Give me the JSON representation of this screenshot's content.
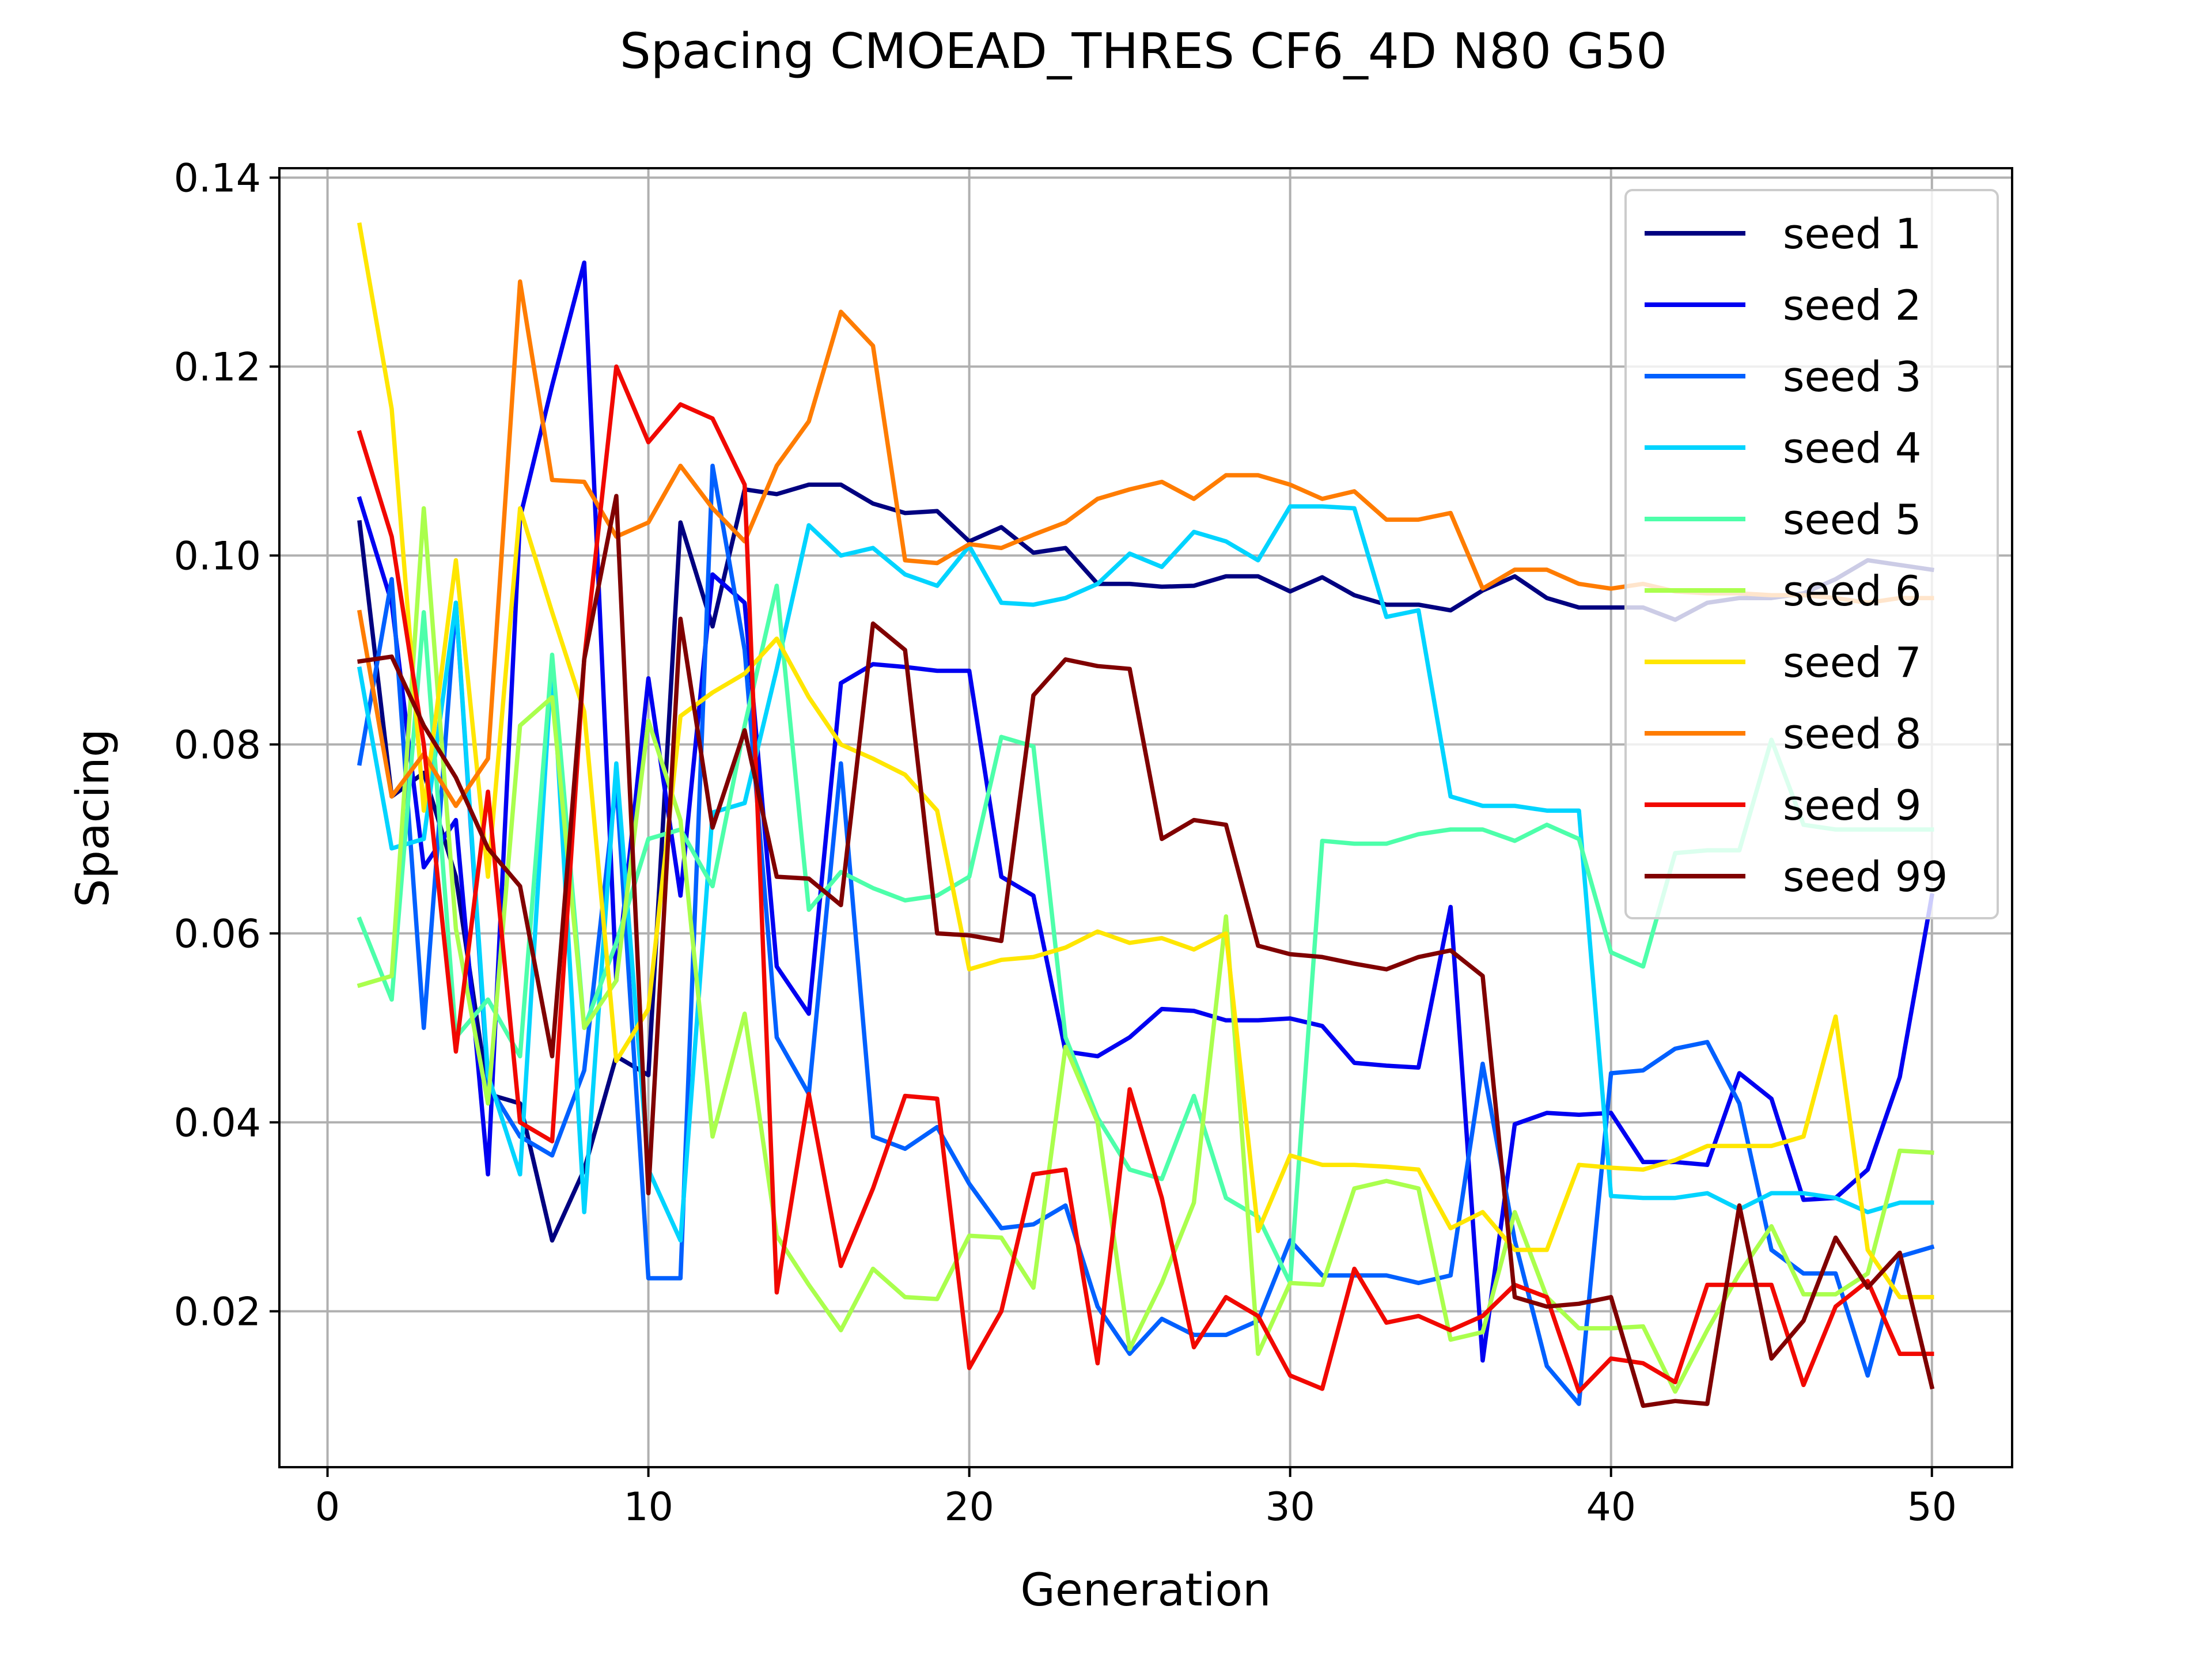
{
  "chart_data": {
    "type": "line",
    "title": "Spacing CMOEAD_THRES CF6_4D N80 G50",
    "xlabel": "Generation",
    "ylabel": "Spacing",
    "xlim": [
      -1.5,
      52.5
    ],
    "ylim": [
      0.0035,
      0.141
    ],
    "xticks": [
      0,
      10,
      20,
      30,
      40,
      50
    ],
    "yticks": [
      0.02,
      0.04,
      0.06,
      0.08,
      0.1,
      0.12,
      0.14
    ],
    "ytick_labels": [
      "0.02",
      "0.04",
      "0.06",
      "0.08",
      "0.10",
      "0.12",
      "0.14"
    ],
    "grid": true,
    "legend_position": "top-right",
    "x": [
      1,
      2,
      3,
      4,
      5,
      6,
      7,
      8,
      9,
      10,
      11,
      12,
      13,
      14,
      15,
      16,
      17,
      18,
      19,
      20,
      21,
      22,
      23,
      24,
      25,
      26,
      27,
      28,
      29,
      30,
      31,
      32,
      33,
      34,
      35,
      36,
      37,
      38,
      39,
      40,
      41,
      42,
      43,
      44,
      45,
      46,
      47,
      48,
      49,
      50
    ],
    "series": [
      {
        "name": "seed 1",
        "color": "#000080",
        "values": [
          0.1035,
          0.0745,
          0.077,
          0.066,
          0.043,
          0.042,
          0.0275,
          0.035,
          0.047,
          0.045,
          0.1035,
          0.0925,
          0.107,
          0.1065,
          0.1075,
          0.1075,
          0.1055,
          0.1045,
          0.1047,
          0.1015,
          0.103,
          0.1003,
          0.1008,
          0.097,
          0.097,
          0.0967,
          0.0968,
          0.0978,
          0.0978,
          0.0962,
          0.0977,
          0.0958,
          0.0948,
          0.0948,
          0.0942,
          0.0963,
          0.0978,
          0.0955,
          0.0945,
          0.0945,
          0.0945,
          0.0932,
          0.095,
          0.0955,
          0.0955,
          0.096,
          0.0975,
          0.0995,
          0.099,
          0.0985
        ]
      },
      {
        "name": "seed 2",
        "color": "#0000f1",
        "values": [
          0.106,
          0.095,
          0.067,
          0.072,
          0.0345,
          0.104,
          0.118,
          0.131,
          0.055,
          0.087,
          0.064,
          0.098,
          0.095,
          0.0565,
          0.0515,
          0.0865,
          0.0885,
          0.0882,
          0.0878,
          0.0878,
          0.066,
          0.064,
          0.0475,
          0.047,
          0.049,
          0.052,
          0.0518,
          0.0508,
          0.0508,
          0.051,
          0.0502,
          0.0463,
          0.046,
          0.0458,
          0.0628,
          0.0148,
          0.0398,
          0.041,
          0.0408,
          0.041,
          0.0358,
          0.0358,
          0.0355,
          0.0452,
          0.0425,
          0.0318,
          0.032,
          0.035,
          0.0448,
          0.064
        ]
      },
      {
        "name": "seed 3",
        "color": "#0060ff",
        "values": [
          0.078,
          0.0975,
          0.05,
          0.095,
          0.044,
          0.0385,
          0.0365,
          0.0455,
          0.076,
          0.0235,
          0.0235,
          0.1095,
          0.09,
          0.049,
          0.043,
          0.078,
          0.0385,
          0.0372,
          0.0395,
          0.0335,
          0.0288,
          0.0292,
          0.0312,
          0.0205,
          0.0155,
          0.0192,
          0.0175,
          0.0175,
          0.019,
          0.0275,
          0.0238,
          0.0238,
          0.0238,
          0.023,
          0.0238,
          0.0462,
          0.0275,
          0.0142,
          0.0102,
          0.0452,
          0.0455,
          0.0478,
          0.0485,
          0.042,
          0.0265,
          0.024,
          0.024,
          0.0132,
          0.0258,
          0.0268
        ]
      },
      {
        "name": "seed 4",
        "color": "#00d4ff",
        "values": [
          0.088,
          0.069,
          0.07,
          0.095,
          0.045,
          0.0345,
          0.089,
          0.0305,
          0.078,
          0.035,
          0.0275,
          0.0728,
          0.0738,
          0.088,
          0.1032,
          0.1,
          0.1008,
          0.098,
          0.0968,
          0.101,
          0.095,
          0.0948,
          0.0955,
          0.097,
          0.1002,
          0.0988,
          0.1025,
          0.1015,
          0.0995,
          0.1052,
          0.1052,
          0.105,
          0.0935,
          0.0942,
          0.0745,
          0.0735,
          0.0735,
          0.073,
          0.073,
          0.0322,
          0.032,
          0.032,
          0.0325,
          0.0308,
          0.0325,
          0.0325,
          0.032,
          0.0305,
          0.0315,
          0.0315
        ]
      },
      {
        "name": "seed 5",
        "color": "#4dffaa",
        "values": [
          0.0615,
          0.053,
          0.094,
          0.049,
          0.053,
          0.047,
          0.0895,
          0.05,
          0.059,
          0.07,
          0.071,
          0.065,
          0.082,
          0.0968,
          0.0625,
          0.0665,
          0.0648,
          0.0635,
          0.064,
          0.066,
          0.0808,
          0.0798,
          0.049,
          0.0405,
          0.035,
          0.034,
          0.0428,
          0.032,
          0.03,
          0.023,
          0.0698,
          0.0695,
          0.0695,
          0.0705,
          0.071,
          0.071,
          0.0698,
          0.0715,
          0.07,
          0.058,
          0.0565,
          0.0685,
          0.0688,
          0.0688,
          0.0805,
          0.0715,
          0.071,
          0.071,
          0.071,
          0.071
        ]
      },
      {
        "name": "seed 6",
        "color": "#aaff4d",
        "values": [
          0.0545,
          0.0555,
          0.105,
          0.0605,
          0.042,
          0.082,
          0.085,
          0.05,
          0.055,
          0.0825,
          0.072,
          0.0385,
          0.0515,
          0.028,
          0.0228,
          0.018,
          0.0245,
          0.0215,
          0.0213,
          0.028,
          0.0278,
          0.0225,
          0.048,
          0.04,
          0.016,
          0.023,
          0.0315,
          0.0618,
          0.0155,
          0.023,
          0.0228,
          0.033,
          0.0338,
          0.033,
          0.017,
          0.0178,
          0.0305,
          0.0215,
          0.0182,
          0.0182,
          0.0184,
          0.0115,
          0.018,
          0.024,
          0.029,
          0.0218,
          0.0218,
          0.024,
          0.037,
          0.0368
        ]
      },
      {
        "name": "seed 7",
        "color": "#ffe600",
        "values": [
          0.135,
          0.1155,
          0.073,
          0.0995,
          0.066,
          0.105,
          0.094,
          0.0835,
          0.0465,
          0.052,
          0.083,
          0.0855,
          0.0875,
          0.0912,
          0.085,
          0.08,
          0.0785,
          0.0768,
          0.073,
          0.0562,
          0.0572,
          0.0575,
          0.0585,
          0.0602,
          0.059,
          0.0595,
          0.0583,
          0.06,
          0.0285,
          0.0365,
          0.0355,
          0.0355,
          0.0353,
          0.035,
          0.0288,
          0.0305,
          0.0265,
          0.0265,
          0.0355,
          0.0352,
          0.035,
          0.036,
          0.0375,
          0.0375,
          0.0375,
          0.0385,
          0.0512,
          0.0265,
          0.0215,
          0.0215
        ]
      },
      {
        "name": "seed 8",
        "color": "#ff7c00",
        "values": [
          0.094,
          0.0745,
          0.079,
          0.0735,
          0.0785,
          0.129,
          0.108,
          0.1078,
          0.102,
          0.1035,
          0.1095,
          0.105,
          0.1015,
          0.1095,
          0.1142,
          0.1258,
          0.1222,
          0.0995,
          0.0992,
          0.1012,
          0.1008,
          0.1022,
          0.1035,
          0.106,
          0.107,
          0.1078,
          0.106,
          0.1085,
          0.1085,
          0.1075,
          0.106,
          0.1068,
          0.1038,
          0.1038,
          0.1045,
          0.0965,
          0.0985,
          0.0985,
          0.097,
          0.0965,
          0.097,
          0.0962,
          0.096,
          0.096,
          0.0958,
          0.0958,
          0.0955,
          0.095,
          0.0955,
          0.0955
        ]
      },
      {
        "name": "seed 9",
        "color": "#f10800",
        "values": [
          0.113,
          0.102,
          0.08,
          0.0475,
          0.075,
          0.04,
          0.038,
          0.089,
          0.12,
          0.112,
          0.116,
          0.1145,
          0.1075,
          0.022,
          0.043,
          0.0248,
          0.033,
          0.0428,
          0.0425,
          0.014,
          0.02,
          0.0345,
          0.035,
          0.0145,
          0.0435,
          0.032,
          0.0162,
          0.0215,
          0.0195,
          0.0132,
          0.0118,
          0.0245,
          0.0188,
          0.0195,
          0.018,
          0.0195,
          0.0228,
          0.0215,
          0.0115,
          0.015,
          0.0145,
          0.0125,
          0.0228,
          0.0228,
          0.0228,
          0.0122,
          0.0205,
          0.0232,
          0.0155,
          0.0155
        ]
      },
      {
        "name": "seed 99",
        "color": "#800000",
        "values": [
          0.0888,
          0.0893,
          0.082,
          0.0765,
          0.069,
          0.065,
          0.047,
          0.089,
          0.1063,
          0.0325,
          0.0933,
          0.0712,
          0.0815,
          0.066,
          0.0658,
          0.063,
          0.0928,
          0.09,
          0.06,
          0.0598,
          0.0592,
          0.0852,
          0.089,
          0.0883,
          0.088,
          0.07,
          0.072,
          0.0715,
          0.0587,
          0.0578,
          0.0575,
          0.0568,
          0.0562,
          0.0575,
          0.0582,
          0.0555,
          0.0215,
          0.0205,
          0.0208,
          0.0215,
          0.01,
          0.0105,
          0.0102,
          0.0312,
          0.015,
          0.019,
          0.0278,
          0.0225,
          0.0262,
          0.012
        ]
      }
    ]
  }
}
